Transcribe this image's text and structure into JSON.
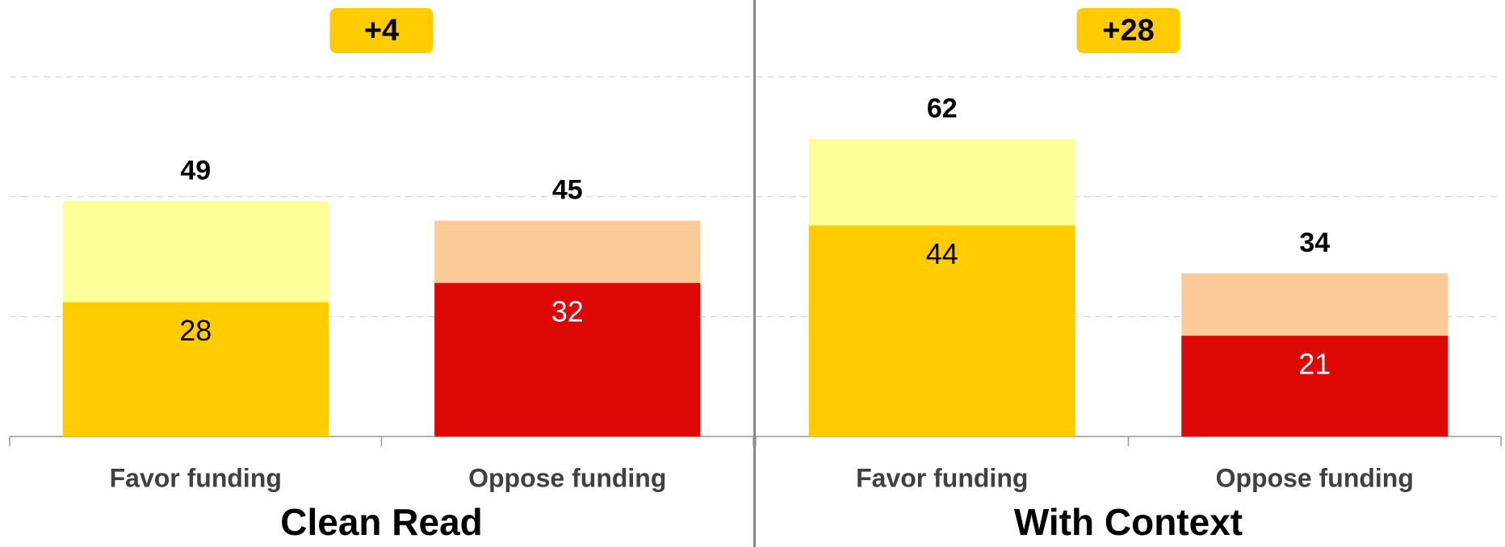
{
  "chart_data": [
    {
      "type": "bar",
      "title": "Clean Read",
      "annotation": "+4",
      "categories": [
        "Favor funding",
        "Oppose funding"
      ],
      "series": [
        {
          "colors": [
            "#FFFF99",
            "#FDCA9A"
          ],
          "label_colors": [
            "#000000",
            "#000000"
          ],
          "values": [
            49,
            45
          ]
        },
        {
          "colors": [
            "#FFCC00",
            "#DD0806"
          ],
          "label_colors": [
            "#000000",
            "#ffffff"
          ],
          "values": [
            28,
            32
          ]
        }
      ],
      "ylim": [
        0,
        90
      ],
      "yticks": [
        0,
        25,
        50,
        75
      ],
      "grid": true
    },
    {
      "type": "bar",
      "title": "With Context",
      "annotation": "+28",
      "categories": [
        "Favor funding",
        "Oppose funding"
      ],
      "series": [
        {
          "colors": [
            "#FFFF99",
            "#FDCA9A"
          ],
          "label_colors": [
            "#000000",
            "#000000"
          ],
          "values": [
            62,
            34
          ]
        },
        {
          "colors": [
            "#FFCC00",
            "#DD0806"
          ],
          "label_colors": [
            "#000000",
            "#ffffff"
          ],
          "values": [
            44,
            21
          ]
        }
      ],
      "ylim": [
        0,
        90
      ],
      "yticks": [
        0,
        25,
        50,
        75
      ],
      "grid": true
    }
  ]
}
